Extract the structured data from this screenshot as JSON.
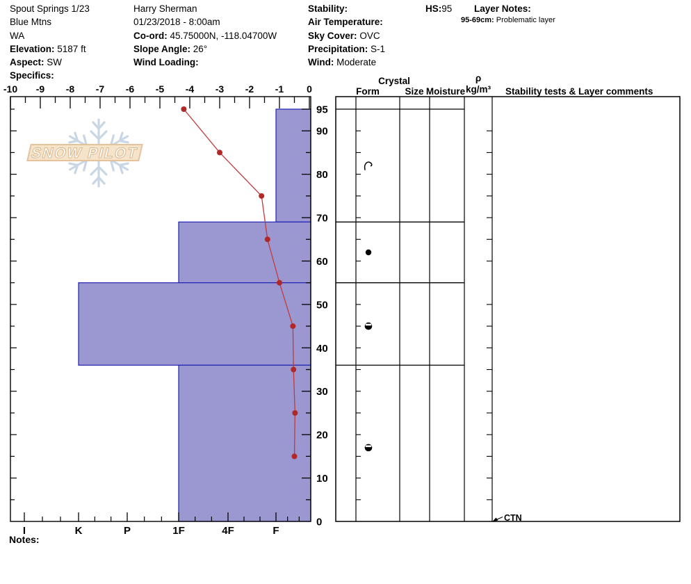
{
  "header": {
    "site": {
      "title": "Spout Springs 1/23",
      "range": "Blue Mtns",
      "state": "WA",
      "elevation_label": "Elevation:",
      "elevation_value": "5187 ft",
      "aspect_label": "Aspect:",
      "aspect_value": "SW",
      "specifics_label": "Specifics:",
      "specifics_value": ""
    },
    "observer": {
      "name": "Harry Sherman",
      "datetime": "01/23/2018 - 8:00am",
      "coord_label": "Co-ord:",
      "coord_value": "45.75000N, -118.04700W",
      "slope_angle_label": "Slope Angle:",
      "slope_angle_value": "26°",
      "wind_loading_label": "Wind Loading:",
      "wind_loading_value": ""
    },
    "conditions": {
      "stability_label": "Stability:",
      "stability_value": "",
      "air_temp_label": "Air Temperature:",
      "air_temp_value": "",
      "sky_label": "Sky Cover:",
      "sky_value": "OVC",
      "precip_label": "Precipitation:",
      "precip_value": "S-1",
      "wind_label": "Wind:",
      "wind_value": "Moderate"
    },
    "hs_label": "HS:",
    "hs_value": "95",
    "layer_notes_label": "Layer Notes:",
    "layer_notes": [
      {
        "range": "95-69cm:",
        "text": "Problematic layer"
      }
    ]
  },
  "watermark": {
    "logo_text": "SNOW PILOT"
  },
  "panel": {
    "crystal_header": "Crystal",
    "col_form": "Form",
    "col_size": "Size",
    "col_moisture": "Moisture",
    "density_symbol": "ρ",
    "density_unit": "kg/m³",
    "stability_header": "Stability tests & Layer comments"
  },
  "footer": {
    "notes_label": "Notes:"
  },
  "chart_data": {
    "type": "snow-profile",
    "temp_axis": {
      "min": -10,
      "max": 0,
      "major_ticks": [
        -10,
        -9,
        -8,
        -7,
        -6,
        -5,
        -4,
        -3,
        -2,
        -1,
        0
      ],
      "minor_step": 0.5
    },
    "depth_axis": {
      "min": 0,
      "max": 95,
      "labeled_ticks": [
        95,
        90,
        80,
        70,
        60,
        50,
        40,
        30,
        20,
        10,
        0
      ],
      "minor_step": 5
    },
    "hardness_axis": {
      "labels": [
        "I",
        "K",
        "P",
        "1F",
        "4F",
        "F"
      ]
    },
    "temperature_series": [
      {
        "depth_cm": 95,
        "temp_c": -4.2
      },
      {
        "depth_cm": 85,
        "temp_c": -3.0
      },
      {
        "depth_cm": 75,
        "temp_c": -1.6
      },
      {
        "depth_cm": 65,
        "temp_c": -1.4
      },
      {
        "depth_cm": 55,
        "temp_c": -1.0
      },
      {
        "depth_cm": 45,
        "temp_c": -0.55
      },
      {
        "depth_cm": 35,
        "temp_c": -0.53
      },
      {
        "depth_cm": 25,
        "temp_c": -0.48
      },
      {
        "depth_cm": 15,
        "temp_c": -0.5
      }
    ],
    "layers": [
      {
        "top_cm": 95,
        "bottom_cm": 69,
        "hardness": "F"
      },
      {
        "top_cm": 69,
        "bottom_cm": 55,
        "hardness": "1F"
      },
      {
        "top_cm": 55,
        "bottom_cm": 36,
        "hardness": "K"
      },
      {
        "top_cm": 36,
        "bottom_cm": 0,
        "hardness": "1F"
      }
    ],
    "layer_boundaries_cm": [
      95,
      69,
      55,
      36
    ],
    "grain_forms": [
      {
        "depth_cm": 82,
        "form": "DF"
      },
      {
        "depth_cm": 62,
        "form": "RG"
      },
      {
        "depth_cm": 45,
        "form": "MFcr"
      },
      {
        "depth_cm": 17,
        "form": "MFcr"
      }
    ],
    "annotations": [
      {
        "label": "CTN",
        "depth_cm": 0
      }
    ],
    "legend_position": "none",
    "grid": "off",
    "colors": {
      "bar_fill": "#9b97d1",
      "bar_border": "#2222b2",
      "temp_line": "#c03a3a",
      "temp_dot": "#b22828",
      "frame": "#000000",
      "watermark_flake": "#c9d7e4",
      "watermark_banner_fill": "#f5e3ca",
      "watermark_banner_border": "#e5c29b",
      "watermark_text_stroke": "#dcba90"
    }
  }
}
